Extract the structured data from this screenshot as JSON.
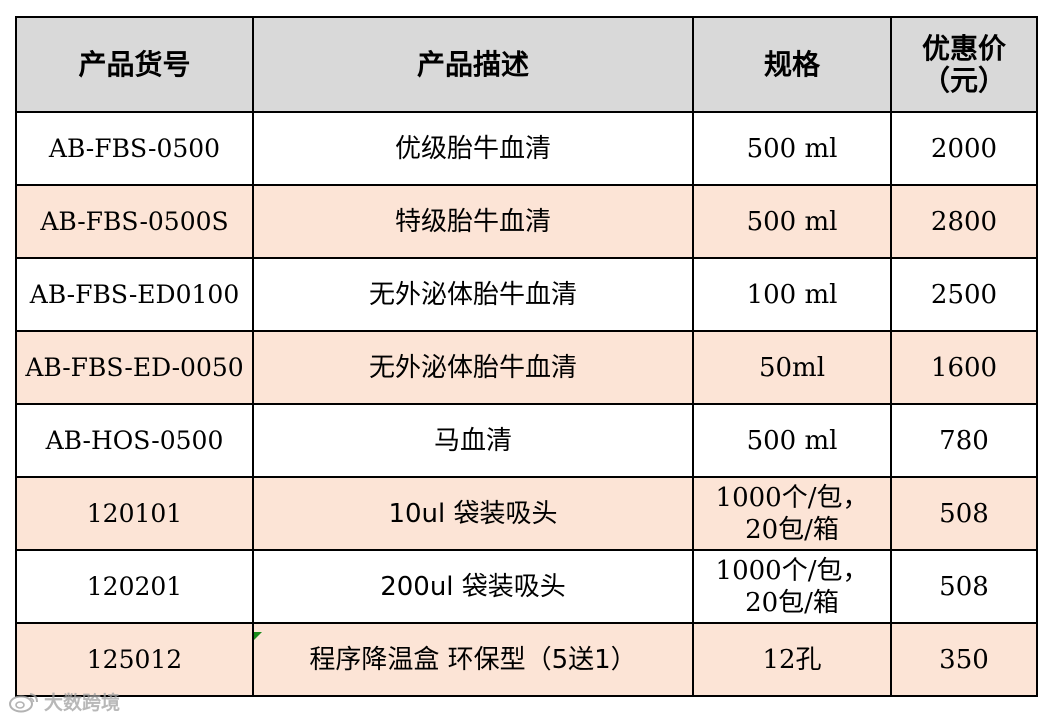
{
  "header": {
    "code": "产品货号",
    "desc": "产品描述",
    "spec": "规格",
    "price_line1": "优惠价",
    "price_line2": "（元）"
  },
  "rows": [
    {
      "code": "AB-FBS-0500",
      "desc": "优级胎牛血清",
      "spec": "500 ml",
      "price": "2000"
    },
    {
      "code": "AB-FBS-0500S",
      "desc": "特级胎牛血清",
      "spec": "500 ml",
      "price": "2800"
    },
    {
      "code": "AB-FBS-ED0100",
      "desc": "无外泌体胎牛血清",
      "spec": "100 ml",
      "price": "2500"
    },
    {
      "code": "AB-FBS-ED-0050",
      "desc": "无外泌体胎牛血清",
      "spec": "50ml",
      "price": "1600"
    },
    {
      "code": "AB-HOS-0500",
      "desc": "马血清",
      "spec": "500 ml",
      "price": "780"
    },
    {
      "code": "120101",
      "desc": "10ul 袋装吸头",
      "spec_line1": "1000个/包，",
      "spec_line2": "20包/箱",
      "price": "508"
    },
    {
      "code": "120201",
      "desc": "200ul 袋装吸头",
      "spec_line1": "1000个/包，",
      "spec_line2": "20包/箱",
      "price": "508"
    },
    {
      "code": "125012",
      "desc": "程序降温盒 环保型（5送1）",
      "spec": "12孔",
      "price": "350"
    }
  ],
  "colors": {
    "header_bg": "#d9d9d9",
    "shaded_row_bg": "#fce4d6",
    "plain_row_bg": "#ffffff",
    "border": "#000000"
  },
  "watermark": {
    "text": "大数跨境",
    "icon": "weibo-logo-icon"
  }
}
